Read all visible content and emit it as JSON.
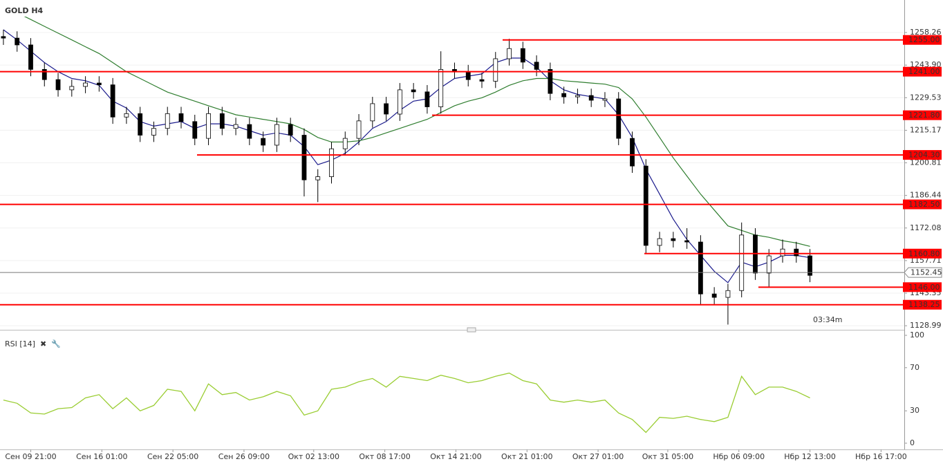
{
  "chart_data": [
    {
      "type": "candlestick",
      "title": "GOLD H4",
      "up_color": "#ffffff",
      "down_color": "#000000",
      "open": [
        1256.5,
        1255.8,
        1252.8,
        1242.0,
        1237.5,
        1233.0,
        1234.5,
        1236.0,
        1235.2,
        1221.0,
        1222.5,
        1213.0,
        1216.0,
        1222.5,
        1219.0,
        1211.6,
        1222.5,
        1216.0,
        1217.7,
        1211.6,
        1208.6,
        1217.7,
        1213.0,
        1193.3,
        1194.7,
        1207.0,
        1211.6,
        1219.3,
        1226.9,
        1222.3,
        1233.0,
        1232.1,
        1225.5,
        1242.0,
        1241.0,
        1237.5,
        1236.8,
        1246.7,
        1251.2,
        1245.2,
        1242.0,
        1231.4,
        1229.9,
        1230.5,
        1228.4,
        1229.0,
        1211.6,
        1199.4,
        1164.4,
        1167.4,
        1166.5,
        1165.9,
        1143.0,
        1141.5,
        1144.5,
        1169.0,
        1152.2,
        1159.8,
        1162.8,
        1159.8
      ],
      "high": [
        1259.5,
        1258.8,
        1255.8,
        1245.0,
        1240.5,
        1237.5,
        1239.0,
        1239.0,
        1238.2,
        1225.5,
        1225.5,
        1219.0,
        1225.5,
        1225.5,
        1222.0,
        1225.5,
        1225.5,
        1220.7,
        1220.7,
        1214.6,
        1220.7,
        1220.7,
        1216.0,
        1198.0,
        1210.0,
        1214.6,
        1222.3,
        1229.9,
        1229.9,
        1236.0,
        1236.0,
        1235.1,
        1250.0,
        1245.0,
        1244.0,
        1240.5,
        1249.7,
        1255.5,
        1254.2,
        1248.2,
        1245.0,
        1234.4,
        1233.5,
        1233.5,
        1232.0,
        1232.0,
        1214.6,
        1202.4,
        1170.4,
        1170.4,
        1172.0,
        1168.9,
        1146.0,
        1147.5,
        1174.5,
        1172.0,
        1162.8,
        1167.0,
        1166.0,
        1162.8
      ],
      "low": [
        1252.8,
        1249.8,
        1239.0,
        1234.5,
        1230.0,
        1230.0,
        1231.5,
        1232.2,
        1218.0,
        1218.0,
        1210.0,
        1210.0,
        1213.0,
        1216.0,
        1208.6,
        1208.6,
        1213.0,
        1213.0,
        1208.6,
        1205.6,
        1205.6,
        1210.0,
        1186.0,
        1183.5,
        1191.7,
        1204.0,
        1208.6,
        1216.3,
        1219.3,
        1219.3,
        1229.1,
        1222.5,
        1222.5,
        1238.0,
        1234.5,
        1233.8,
        1233.8,
        1243.7,
        1242.2,
        1239.0,
        1228.4,
        1226.9,
        1226.9,
        1225.4,
        1225.4,
        1208.6,
        1196.4,
        1160.8,
        1161.4,
        1163.5,
        1162.9,
        1138.0,
        1138.5,
        1129.5,
        1141.5,
        1149.2,
        1146.0,
        1156.8,
        1156.8,
        1148.2
      ],
      "close": [
        1255.8,
        1252.8,
        1242.0,
        1237.5,
        1233.0,
        1234.5,
        1236.0,
        1235.2,
        1221.0,
        1222.5,
        1213.0,
        1216.0,
        1222.5,
        1219.0,
        1211.6,
        1222.5,
        1216.0,
        1217.7,
        1211.6,
        1208.6,
        1217.7,
        1213.0,
        1193.3,
        1194.7,
        1207.0,
        1211.6,
        1219.3,
        1226.9,
        1222.3,
        1233.0,
        1232.1,
        1225.5,
        1242.0,
        1241.0,
        1237.5,
        1236.8,
        1246.7,
        1251.2,
        1245.2,
        1242.0,
        1231.4,
        1229.9,
        1230.5,
        1228.4,
        1229.0,
        1211.6,
        1199.4,
        1164.4,
        1167.4,
        1166.5,
        1165.9,
        1143.0,
        1141.5,
        1144.5,
        1169.0,
        1152.2,
        1159.8,
        1162.8,
        1159.8,
        1151.2
      ],
      "moving_averages": [
        {
          "color": "#1a1a8c",
          "values": [
            1259.5,
            1255,
            1250,
            1245,
            1241,
            1238,
            1237,
            1235,
            1228,
            1225,
            1219,
            1217,
            1218,
            1219,
            1216,
            1218,
            1218,
            1217,
            1215,
            1213,
            1214,
            1213,
            1208,
            1200,
            1202,
            1205,
            1210,
            1216,
            1219,
            1224,
            1228,
            1229,
            1234,
            1238,
            1239,
            1240,
            1245,
            1247,
            1247,
            1243,
            1237,
            1233,
            1231,
            1230,
            1229,
            1222,
            1212,
            1198,
            1187,
            1176,
            1167,
            1160,
            1153,
            1148,
            1157,
            1155,
            1157,
            1160,
            1160,
            1159
          ]
        },
        {
          "color": "#2e7d2e",
          "values": [
            1270,
            1267,
            1264,
            1261,
            1258,
            1255,
            1252,
            1249,
            1245,
            1241,
            1238,
            1235,
            1232,
            1230,
            1228,
            1226,
            1224,
            1222,
            1221,
            1220,
            1219,
            1218,
            1215.5,
            1212,
            1210,
            1210,
            1210.5,
            1212,
            1214,
            1216,
            1218,
            1220,
            1223,
            1226,
            1228,
            1229.5,
            1232,
            1235,
            1237,
            1238,
            1238,
            1237,
            1236.5,
            1236,
            1235.5,
            1234,
            1229,
            1221,
            1212,
            1203,
            1195,
            1187,
            1180,
            1173,
            1171,
            1169,
            1168,
            1166.5,
            1165.5,
            1164
          ]
        }
      ],
      "levels": [
        {
          "value": 1255,
          "label": "1255.00"
        },
        {
          "value": 1241,
          "label": "1241.00"
        },
        {
          "value": 1221.8,
          "label": "1221.80"
        },
        {
          "value": 1204.3,
          "label": "1204.30"
        },
        {
          "value": 1182.5,
          "label": "1182.50"
        },
        {
          "value": 1160.8,
          "label": "1160.80"
        },
        {
          "value": 1146,
          "label": "1146.00"
        },
        {
          "value": 1138.25,
          "label": "1138.25"
        }
      ],
      "last_price": 1152.45,
      "timer": "03:34m",
      "ylim": [
        1127.2,
        1272.6
      ],
      "yticks": [
        1258.26,
        {
          "value": 1243.9,
          "label": "1243.90"
        },
        1229.53,
        1215.17,
        1200.81,
        1186.44,
        1172.08,
        1157.71,
        1143.35,
        1128.99
      ],
      "xlim": [
        -0.25,
        65.9
      ],
      "xticks": [
        {
          "value": 2.0,
          "label": "Сен 09 21:00"
        },
        {
          "value": 7.2,
          "label": "Сен 16 01:00"
        },
        {
          "value": 12.4,
          "label": "Сен 22 05:00"
        },
        {
          "value": 17.6,
          "label": "Сен 26 09:00"
        },
        {
          "value": 22.7,
          "label": "Окт 02 13:00"
        },
        {
          "value": 27.9,
          "label": "Окт 08 17:00"
        },
        {
          "value": 33.1,
          "label": "Окт 14 21:00"
        },
        {
          "value": 38.3,
          "label": "Окт 21 01:00"
        },
        {
          "value": 43.5,
          "label": "Окт 27 01:00"
        },
        {
          "value": 48.6,
          "label": "Окт 31 05:00"
        },
        {
          "value": 53.8,
          "label": "Нбр 06 09:00"
        },
        {
          "value": 59.0,
          "label": "Нбр 12 13:00"
        },
        {
          "value": 64.2,
          "label": "Нбр 16 17:00"
        }
      ]
    },
    {
      "type": "line",
      "title": "RSI [14]",
      "color": "#9acd32",
      "values": [
        40,
        37,
        28,
        27,
        32,
        33,
        42,
        45,
        32,
        42,
        30,
        35,
        50,
        48,
        30,
        55,
        45,
        47,
        40,
        43,
        48,
        44,
        26,
        30,
        50,
        52,
        57,
        60,
        52,
        62,
        60,
        58,
        63,
        60,
        56,
        58,
        62,
        65,
        58,
        55,
        40,
        38,
        40,
        38,
        40,
        28,
        22,
        10,
        24,
        23,
        25,
        22,
        20,
        24,
        62,
        45,
        52,
        52,
        48,
        42
      ],
      "ylim": [
        0,
        100
      ],
      "yticks": [
        0,
        30,
        70,
        100
      ]
    }
  ]
}
